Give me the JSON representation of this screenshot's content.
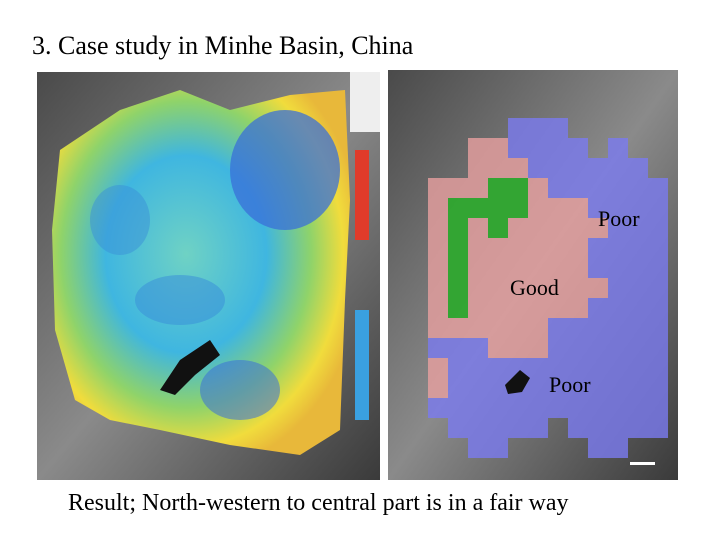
{
  "header": {
    "title": "3. Case study in Minhe Basin, China"
  },
  "map_labels": [
    "Poor",
    "Good",
    "Poor"
  ],
  "caption": "Result; North-western to central part is in a fair way"
}
